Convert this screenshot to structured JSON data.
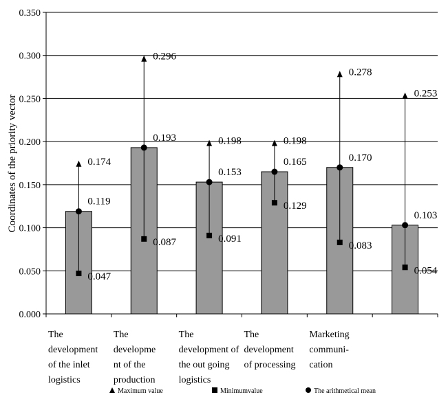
{
  "chart_data": {
    "type": "bar",
    "title": "",
    "xlabel": "",
    "ylabel": "Coordinates of the priority vector",
    "ylim": [
      0,
      0.35
    ],
    "yticks": [
      "0.000",
      "0.050",
      "0.100",
      "0.150",
      "0.200",
      "0.250",
      "0.300",
      "0.350"
    ],
    "grid": true,
    "legend_position": "bottom",
    "categories": [
      [
        "The",
        "development",
        "of the inlet",
        "logistics"
      ],
      [
        "The",
        "developme",
        "nt of the",
        "production"
      ],
      [
        "The",
        "development of",
        "the out going",
        "logistics"
      ],
      [
        "The",
        "development",
        "of processing"
      ],
      [
        "Marketing",
        "communi-",
        "cation"
      ],
      []
    ],
    "series": [
      {
        "name": "The arithmetical mean",
        "values": [
          0.119,
          0.193,
          0.153,
          0.165,
          0.17,
          0.103
        ]
      },
      {
        "name": "Maximum value",
        "values": [
          0.174,
          0.296,
          0.198,
          0.198,
          0.278,
          0.253
        ]
      },
      {
        "name": "Minimumvalue",
        "values": [
          0.047,
          0.087,
          0.091,
          0.129,
          0.083,
          0.054
        ]
      }
    ],
    "labels": {
      "mean": [
        "0.119",
        "0.193",
        "0.153",
        "0.165",
        "0.170",
        "0.103"
      ],
      "max": [
        "0.174",
        "0.296",
        "0.198",
        "0.198",
        "0.278",
        "0.253"
      ],
      "min": [
        "0.047",
        "0.087",
        "0.091",
        "0.129",
        "0.083",
        "0.054"
      ]
    },
    "legend": [
      {
        "marker": "triangle",
        "label": "Maximum value"
      },
      {
        "marker": "square",
        "label": "Minimumvalue"
      },
      {
        "marker": "circle",
        "label": "The arithmetical mean"
      }
    ],
    "colors": {
      "bar": "#999999",
      "bar_edge": "#000000",
      "grid": "#000000",
      "marker": "#000000"
    }
  }
}
